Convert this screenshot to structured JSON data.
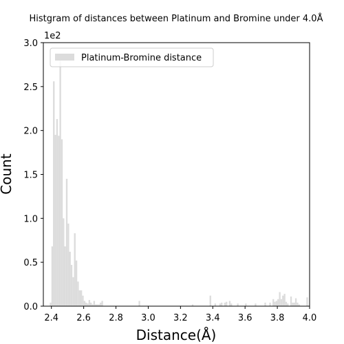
{
  "chart_data": {
    "type": "bar",
    "title": "Histgram of distances between Platinum and Bromine under 4.0Å",
    "xlabel": "Distance(Å)",
    "ylabel": "Count",
    "y_offset_text": "1e2",
    "xlim": [
      2.35,
      4.0
    ],
    "ylim": [
      0,
      300
    ],
    "x_ticks": [
      2.4,
      2.6,
      2.8,
      3.0,
      3.2,
      3.4,
      3.6,
      3.8,
      4.0
    ],
    "x_tick_labels": [
      "2.4",
      "2.6",
      "2.8",
      "3.0",
      "3.2",
      "3.4",
      "3.6",
      "3.8",
      "4.0"
    ],
    "y_ticks": [
      0,
      50,
      100,
      150,
      200,
      250,
      300
    ],
    "y_tick_labels": [
      "0.0",
      "0.5",
      "1.0",
      "1.5",
      "2.0",
      "2.5",
      "3.0"
    ],
    "bin_width": 0.01,
    "legend_placement": "top-left",
    "bar_color": "#dcdcdc",
    "series": [
      {
        "name": "Platinum-Bromine distance",
        "x": [
          2.39,
          2.4,
          2.41,
          2.42,
          2.43,
          2.44,
          2.45,
          2.46,
          2.47,
          2.48,
          2.49,
          2.5,
          2.51,
          2.52,
          2.53,
          2.54,
          2.55,
          2.56,
          2.57,
          2.58,
          2.59,
          2.6,
          2.61,
          2.62,
          2.63,
          2.64,
          2.65,
          2.66,
          2.67,
          2.68,
          2.69,
          2.7,
          2.71,
          2.94,
          3.27,
          3.38,
          3.41,
          3.44,
          3.45,
          3.47,
          3.48,
          3.5,
          3.51,
          3.55,
          3.6,
          3.66,
          3.72,
          3.75,
          3.77,
          3.78,
          3.79,
          3.8,
          3.81,
          3.82,
          3.83,
          3.84,
          3.85,
          3.86,
          3.88,
          3.89,
          3.9,
          3.91,
          3.92,
          3.93,
          3.98
        ],
        "values": [
          4,
          68,
          256,
          195,
          213,
          194,
          280,
          190,
          100,
          68,
          145,
          94,
          62,
          47,
          33,
          83,
          52,
          28,
          18,
          18,
          12,
          6,
          4,
          3,
          7,
          4,
          2,
          6,
          2,
          2,
          2,
          4,
          6,
          6,
          2,
          12,
          3,
          3,
          4,
          4,
          5,
          6,
          3,
          3,
          3,
          3,
          4,
          4,
          8,
          5,
          6,
          8,
          16,
          8,
          12,
          14,
          5,
          3,
          11,
          4,
          4,
          9,
          4,
          2,
          10
        ]
      }
    ]
  }
}
